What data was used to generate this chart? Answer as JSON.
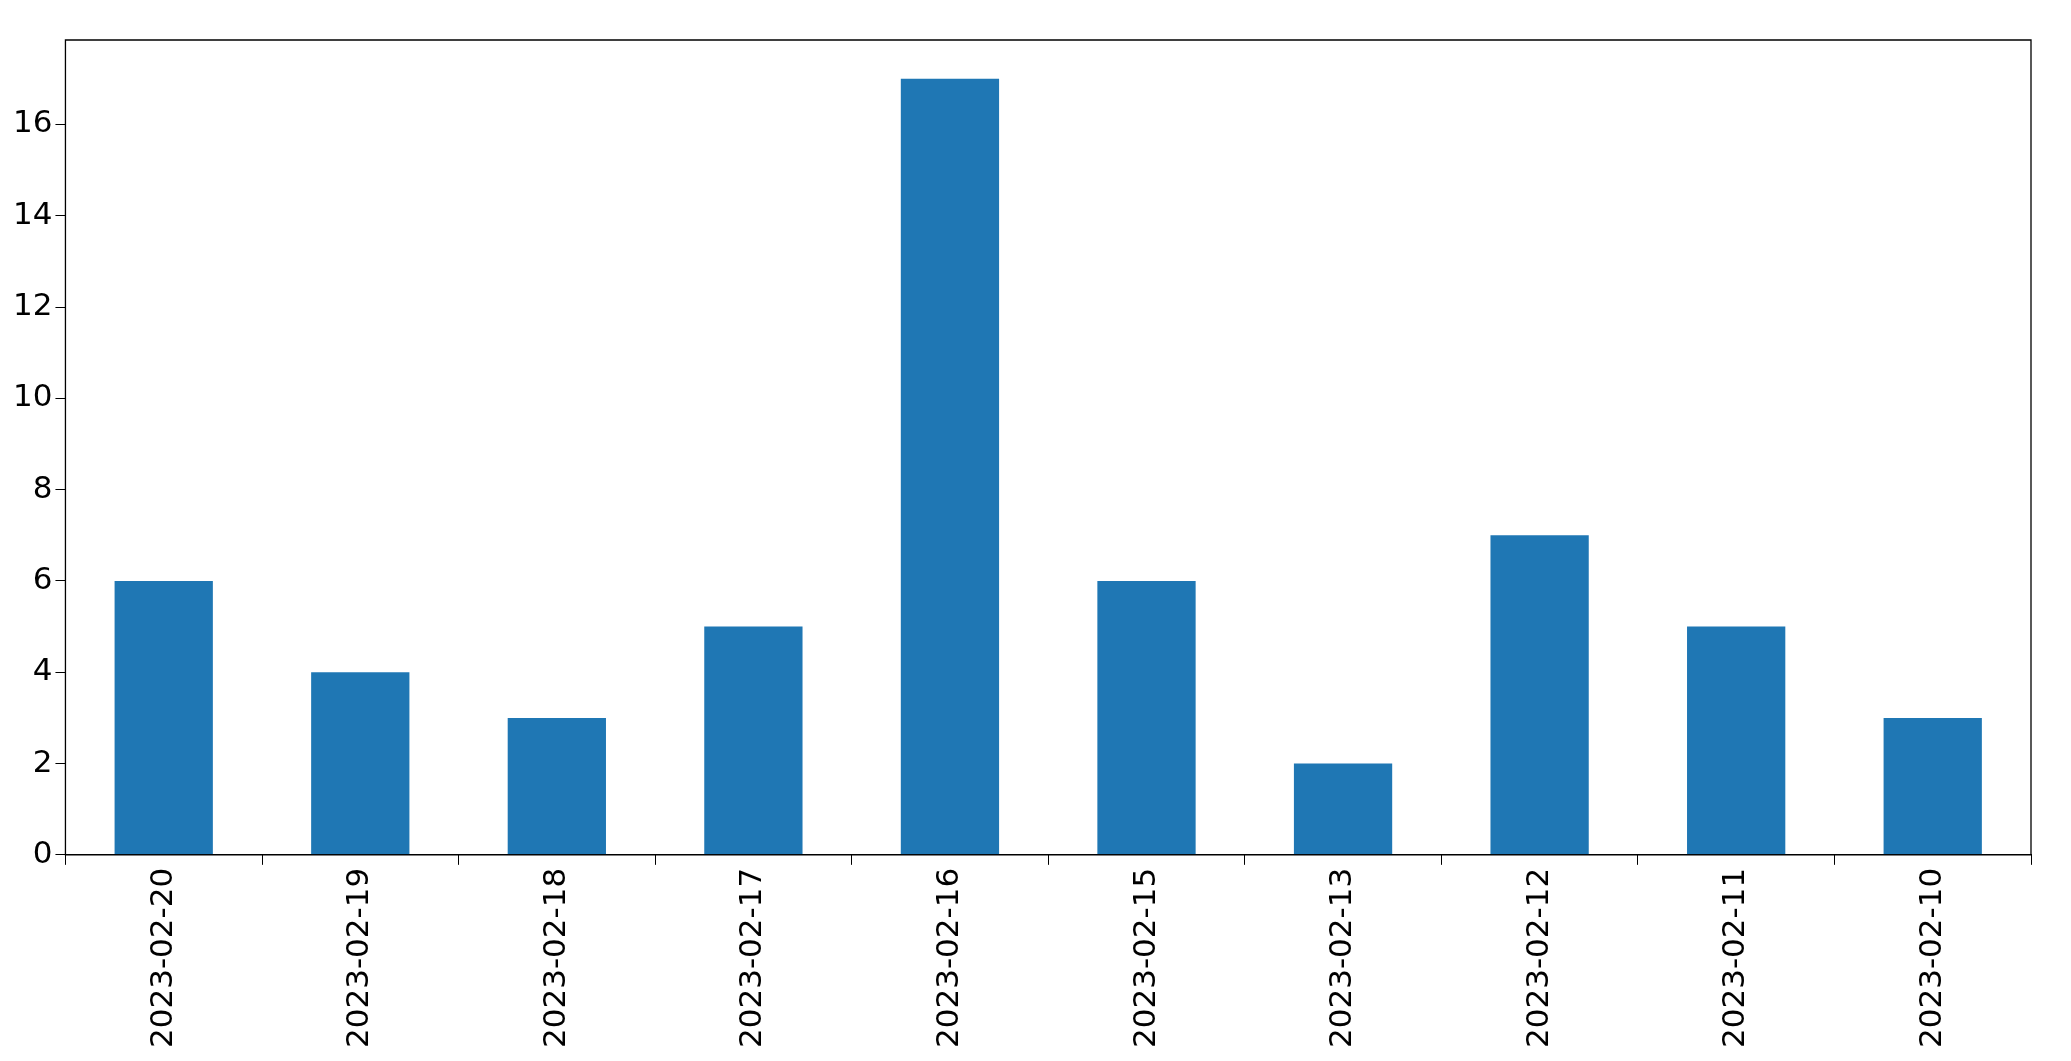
{
  "chart_data": {
    "type": "bar",
    "categories": [
      "2023-02-20",
      "2023-02-19",
      "2023-02-18",
      "2023-02-17",
      "2023-02-16",
      "2023-02-15",
      "2023-02-13",
      "2023-02-12",
      "2023-02-11",
      "2023-02-10"
    ],
    "values": [
      6,
      4,
      3,
      5,
      17,
      6,
      2,
      7,
      5,
      3
    ],
    "color": "#1f77b4",
    "ylim": [
      0,
      17.85
    ],
    "yticks": [
      0,
      2,
      4,
      6,
      8,
      10,
      12,
      14,
      16
    ]
  }
}
